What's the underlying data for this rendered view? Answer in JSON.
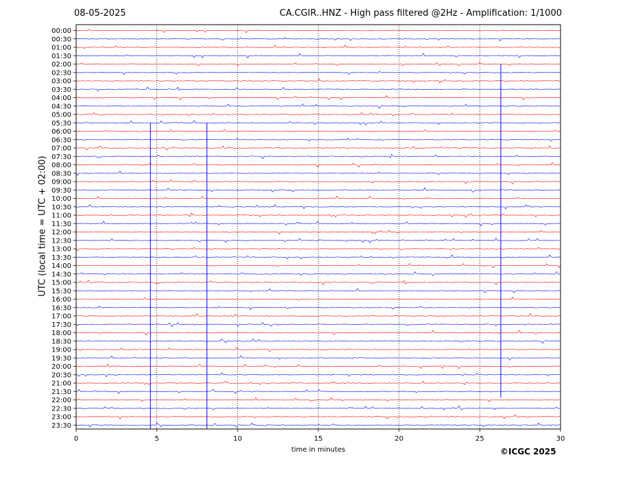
{
  "header": {
    "date": "08-05-2025",
    "title": "CA.CGIR..HNZ - High pass filtered @2Hz - Amplification: 1/1000"
  },
  "footer": {
    "copyright": "©ICGC 2025"
  },
  "colors": {
    "red": "#ff0000",
    "blue": "#0000ff",
    "frame": "#000000"
  },
  "chart_data": {
    "type": "line",
    "xlabel": "time in minutes",
    "ylabel": "UTC (local time = UTC + 02:00)",
    "xlim": [
      0,
      30
    ],
    "x_ticks": [
      0,
      5,
      10,
      15,
      20,
      25,
      30
    ],
    "x_tick_labels": [
      "0",
      "5",
      "10",
      "15",
      "20",
      "25",
      "30"
    ],
    "grid": "vertical dotted lines at 5, 10, 15, 20, 25",
    "row_labels": [
      "00:00",
      "00:30",
      "01:00",
      "01:30",
      "02:00",
      "02:30",
      "03:00",
      "03:30",
      "04:00",
      "04:30",
      "05:00",
      "05:30",
      "06:00",
      "06:30",
      "07:00",
      "07:30",
      "08:00",
      "08:30",
      "09:00",
      "09:30",
      "10:00",
      "10:30",
      "11:00",
      "11:30",
      "12:00",
      "12:30",
      "13:00",
      "13:30",
      "14:00",
      "14:30",
      "15:00",
      "15:30",
      "16:00",
      "16:30",
      "17:00",
      "17:30",
      "18:00",
      "18:30",
      "19:00",
      "19:30",
      "20:00",
      "20:30",
      "21:00",
      "21:30",
      "22:00",
      "22:30",
      "23:00",
      "23:30"
    ],
    "row_colors": "alternating red / blue traces",
    "spikes": [
      {
        "row": "05:30",
        "x": 4.6
      },
      {
        "row": "05:30",
        "x": 8.1
      },
      {
        "row": "02:00",
        "x": 26.3
      }
    ]
  }
}
